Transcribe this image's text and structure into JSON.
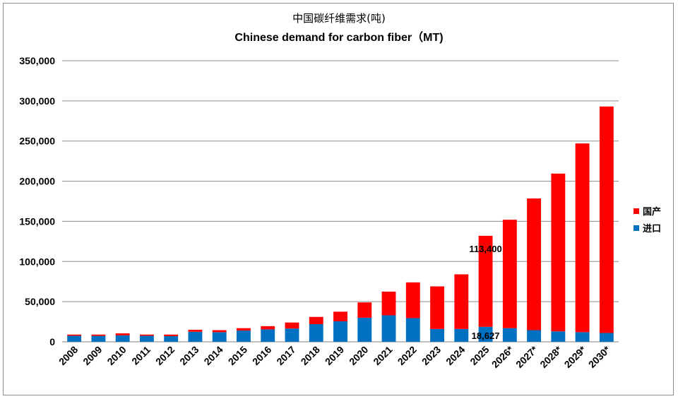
{
  "chart_data": {
    "type": "bar",
    "stacked": true,
    "title": "中国碳纤维需求(吨)",
    "subtitle": "Chinese demand for carbon fiber（MT)",
    "categories": [
      "2008",
      "2009",
      "2010",
      "2011",
      "2012",
      "2013",
      "2014",
      "2015",
      "2016",
      "2017",
      "2018",
      "2019",
      "2020",
      "2021",
      "2022",
      "2023",
      "2024",
      "2025",
      "2026*",
      "2027*",
      "2028*",
      "2029*",
      "2030*"
    ],
    "series": [
      {
        "name": "进口",
        "color": "#0070c0",
        "values": [
          7500,
          7400,
          8000,
          7500,
          7000,
          12500,
          12000,
          14000,
          15500,
          16500,
          22000,
          25500,
          30000,
          33000,
          29500,
          16000,
          16000,
          18627,
          17000,
          14500,
          13000,
          12000,
          11000
        ]
      },
      {
        "name": "国产",
        "color": "#ff0000",
        "values": [
          1500,
          1600,
          2500,
          1500,
          2000,
          2500,
          2500,
          3000,
          4000,
          7500,
          9000,
          12000,
          19000,
          29500,
          44500,
          53000,
          68000,
          113400,
          135000,
          164000,
          196500,
          235000,
          282000
        ]
      }
    ],
    "ylim": [
      0,
      350000
    ],
    "yticks": [
      0,
      50000,
      100000,
      150000,
      200000,
      250000,
      300000,
      350000
    ],
    "ytick_labels": [
      "0",
      "50,000",
      "100,000",
      "150,000",
      "200,000",
      "250,000",
      "300,000",
      "350,000"
    ],
    "grid": true,
    "legend": {
      "position": "right",
      "entries": [
        "国产",
        "进口"
      ]
    },
    "annotations": [
      {
        "text": "113,400",
        "category": "2025",
        "series": "国产"
      },
      {
        "text": "18,627",
        "category": "2025",
        "series": "进口"
      }
    ]
  }
}
